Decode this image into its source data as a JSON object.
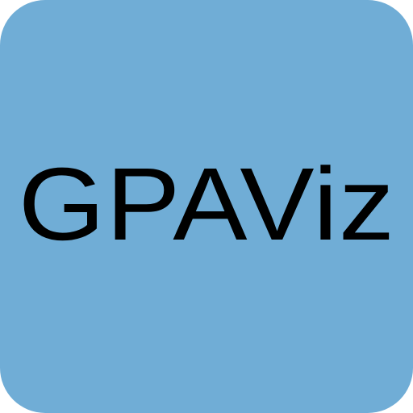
{
  "icon": {
    "label": "GPAViz",
    "background_color": "#70add6",
    "text_color": "#000000"
  }
}
